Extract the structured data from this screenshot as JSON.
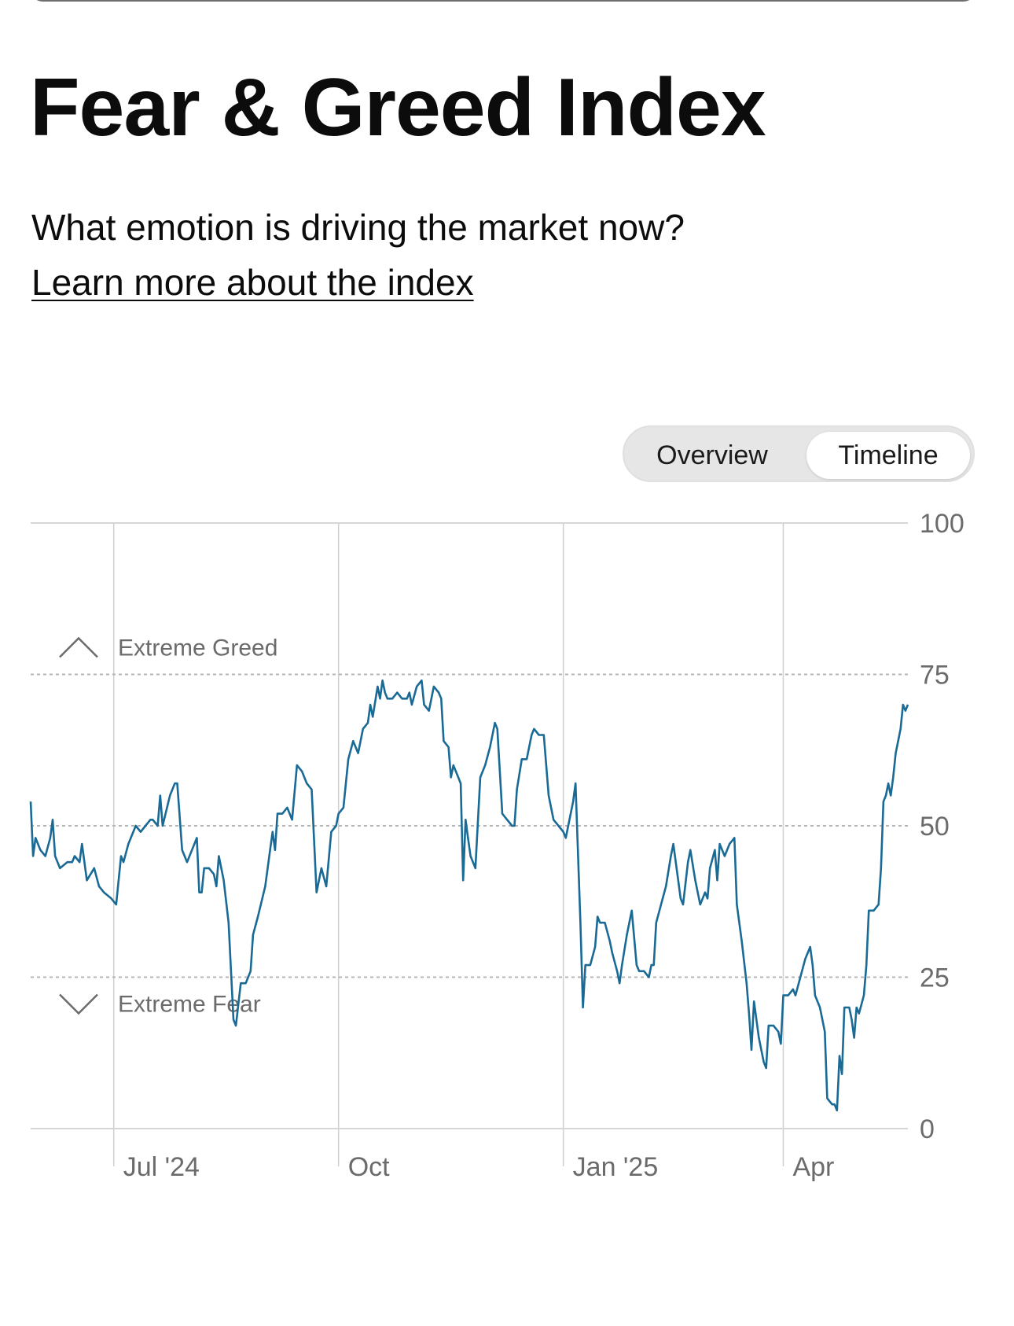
{
  "header": {
    "title": "Fear & Greed Index",
    "subtitle": "What emotion is driving the market now?",
    "learn_link": "Learn more about the index"
  },
  "toggle": {
    "options": [
      {
        "label": "Overview",
        "selected": false
      },
      {
        "label": "Timeline",
        "selected": true
      }
    ]
  },
  "colors": {
    "line": "#1a6a96",
    "grid": "#cfcfcf",
    "axis_text": "#6b6b6b"
  },
  "chart_data": {
    "type": "line",
    "title": "",
    "xlabel": "",
    "ylabel": "",
    "ylim": [
      0,
      100
    ],
    "yticks": [
      0,
      25,
      50,
      75,
      100
    ],
    "xticks": [
      {
        "date": "2024-07-01",
        "label": "Jul '24"
      },
      {
        "date": "2024-10-01",
        "label": "Oct"
      },
      {
        "date": "2025-01-01",
        "label": "Jan '25"
      },
      {
        "date": "2025-04-01",
        "label": "Apr"
      }
    ],
    "xlim": [
      "2024-05-28",
      "2025-05-22"
    ],
    "bands": [
      {
        "label": "Extreme Greed",
        "threshold": 75,
        "icon": "chevron-up-icon"
      },
      {
        "label": "Extreme Fear",
        "threshold": 25,
        "icon": "chevron-down-icon"
      }
    ],
    "series": [
      {
        "values": [
          [
            "2024-05-28",
            54
          ],
          [
            "2024-05-29",
            45
          ],
          [
            "2024-05-30",
            48
          ],
          [
            "2024-06-01",
            46
          ],
          [
            "2024-06-03",
            45
          ],
          [
            "2024-06-05",
            48
          ],
          [
            "2024-06-06",
            51
          ],
          [
            "2024-06-07",
            45
          ],
          [
            "2024-06-09",
            43
          ],
          [
            "2024-06-12",
            44
          ],
          [
            "2024-06-14",
            44
          ],
          [
            "2024-06-15",
            45
          ],
          [
            "2024-06-17",
            44
          ],
          [
            "2024-06-18",
            47
          ],
          [
            "2024-06-20",
            41
          ],
          [
            "2024-06-23",
            43
          ],
          [
            "2024-06-25",
            40
          ],
          [
            "2024-06-27",
            39
          ],
          [
            "2024-06-30",
            38
          ],
          [
            "2024-07-02",
            37
          ],
          [
            "2024-07-04",
            45
          ],
          [
            "2024-07-05",
            44
          ],
          [
            "2024-07-07",
            47
          ],
          [
            "2024-07-10",
            50
          ],
          [
            "2024-07-12",
            49
          ],
          [
            "2024-07-14",
            50
          ],
          [
            "2024-07-16",
            51
          ],
          [
            "2024-07-17",
            51
          ],
          [
            "2024-07-19",
            50
          ],
          [
            "2024-07-20",
            55
          ],
          [
            "2024-07-21",
            50
          ],
          [
            "2024-07-24",
            55
          ],
          [
            "2024-07-26",
            57
          ],
          [
            "2024-07-27",
            57
          ],
          [
            "2024-07-29",
            46
          ],
          [
            "2024-07-31",
            44
          ],
          [
            "2024-08-02",
            46
          ],
          [
            "2024-08-04",
            48
          ],
          [
            "2024-08-05",
            39
          ],
          [
            "2024-08-06",
            39
          ],
          [
            "2024-08-07",
            43
          ],
          [
            "2024-08-09",
            43
          ],
          [
            "2024-08-11",
            42
          ],
          [
            "2024-08-12",
            40
          ],
          [
            "2024-08-13",
            45
          ],
          [
            "2024-08-15",
            41
          ],
          [
            "2024-08-17",
            34
          ],
          [
            "2024-08-19",
            18
          ],
          [
            "2024-08-20",
            17
          ],
          [
            "2024-08-22",
            24
          ],
          [
            "2024-08-24",
            24
          ],
          [
            "2024-08-26",
            26
          ],
          [
            "2024-08-27",
            32
          ],
          [
            "2024-08-29",
            35
          ],
          [
            "2024-09-01",
            40
          ],
          [
            "2024-09-03",
            46
          ],
          [
            "2024-09-04",
            49
          ],
          [
            "2024-09-05",
            46
          ],
          [
            "2024-09-06",
            52
          ],
          [
            "2024-09-08",
            52
          ],
          [
            "2024-09-10",
            53
          ],
          [
            "2024-09-12",
            51
          ],
          [
            "2024-09-14",
            60
          ],
          [
            "2024-09-16",
            59
          ],
          [
            "2024-09-18",
            57
          ],
          [
            "2024-09-20",
            56
          ],
          [
            "2024-09-22",
            39
          ],
          [
            "2024-09-24",
            43
          ],
          [
            "2024-09-26",
            40
          ],
          [
            "2024-09-28",
            49
          ],
          [
            "2024-09-30",
            50
          ],
          [
            "2024-10-01",
            52
          ],
          [
            "2024-10-03",
            53
          ],
          [
            "2024-10-05",
            61
          ],
          [
            "2024-10-07",
            64
          ],
          [
            "2024-10-09",
            62
          ],
          [
            "2024-10-11",
            66
          ],
          [
            "2024-10-13",
            67
          ],
          [
            "2024-10-14",
            70
          ],
          [
            "2024-10-15",
            68
          ],
          [
            "2024-10-17",
            73
          ],
          [
            "2024-10-18",
            71
          ],
          [
            "2024-10-19",
            74
          ],
          [
            "2024-10-20",
            72
          ],
          [
            "2024-10-21",
            71
          ],
          [
            "2024-10-23",
            71
          ],
          [
            "2024-10-25",
            72
          ],
          [
            "2024-10-27",
            71
          ],
          [
            "2024-10-29",
            71
          ],
          [
            "2024-10-30",
            72
          ],
          [
            "2024-10-31",
            70
          ],
          [
            "2024-11-02",
            73
          ],
          [
            "2024-11-04",
            74
          ],
          [
            "2024-11-05",
            70
          ],
          [
            "2024-11-07",
            69
          ],
          [
            "2024-11-09",
            73
          ],
          [
            "2024-11-11",
            72
          ],
          [
            "2024-11-12",
            71
          ],
          [
            "2024-11-13",
            64
          ],
          [
            "2024-11-15",
            63
          ],
          [
            "2024-11-16",
            58
          ],
          [
            "2024-11-17",
            60
          ],
          [
            "2024-11-19",
            58
          ],
          [
            "2024-11-20",
            57
          ],
          [
            "2024-11-21",
            41
          ],
          [
            "2024-11-22",
            51
          ],
          [
            "2024-11-23",
            48
          ],
          [
            "2024-11-24",
            45
          ],
          [
            "2024-11-26",
            43
          ],
          [
            "2024-11-28",
            58
          ],
          [
            "2024-11-30",
            60
          ],
          [
            "2024-12-02",
            63
          ],
          [
            "2024-12-04",
            67
          ],
          [
            "2024-12-05",
            66
          ],
          [
            "2024-12-07",
            52
          ],
          [
            "2024-12-09",
            51
          ],
          [
            "2024-12-11",
            50
          ],
          [
            "2024-12-12",
            50
          ],
          [
            "2024-12-13",
            56
          ],
          [
            "2024-12-15",
            61
          ],
          [
            "2024-12-17",
            61
          ],
          [
            "2024-12-18",
            63
          ],
          [
            "2024-12-19",
            65
          ],
          [
            "2024-12-20",
            66
          ],
          [
            "2024-12-22",
            65
          ],
          [
            "2024-12-24",
            65
          ],
          [
            "2024-12-26",
            55
          ],
          [
            "2024-12-28",
            51
          ],
          [
            "2024-12-30",
            50
          ],
          [
            "2025-01-01",
            49
          ],
          [
            "2025-01-02",
            48
          ],
          [
            "2025-01-03",
            50
          ],
          [
            "2025-01-05",
            54
          ],
          [
            "2025-01-06",
            57
          ],
          [
            "2025-01-08",
            34
          ],
          [
            "2025-01-09",
            20
          ],
          [
            "2025-01-10",
            27
          ],
          [
            "2025-01-12",
            27
          ],
          [
            "2025-01-14",
            30
          ],
          [
            "2025-01-15",
            35
          ],
          [
            "2025-01-16",
            34
          ],
          [
            "2025-01-18",
            34
          ],
          [
            "2025-01-20",
            31
          ],
          [
            "2025-01-21",
            29
          ],
          [
            "2025-01-23",
            26
          ],
          [
            "2025-01-24",
            24
          ],
          [
            "2025-01-25",
            27
          ],
          [
            "2025-01-27",
            32
          ],
          [
            "2025-01-29",
            36
          ],
          [
            "2025-01-31",
            27
          ],
          [
            "2025-02-01",
            26
          ],
          [
            "2025-02-03",
            26
          ],
          [
            "2025-02-05",
            25
          ],
          [
            "2025-02-06",
            27
          ],
          [
            "2025-02-07",
            27
          ],
          [
            "2025-02-08",
            34
          ],
          [
            "2025-02-10",
            37
          ],
          [
            "2025-02-12",
            40
          ],
          [
            "2025-02-14",
            45
          ],
          [
            "2025-02-15",
            47
          ],
          [
            "2025-02-16",
            44
          ],
          [
            "2025-02-18",
            38
          ],
          [
            "2025-02-19",
            37
          ],
          [
            "2025-02-21",
            44
          ],
          [
            "2025-02-22",
            46
          ],
          [
            "2025-02-24",
            41
          ],
          [
            "2025-02-26",
            37
          ],
          [
            "2025-02-28",
            39
          ],
          [
            "2025-03-01",
            38
          ],
          [
            "2025-03-02",
            43
          ],
          [
            "2025-03-04",
            46
          ],
          [
            "2025-03-05",
            41
          ],
          [
            "2025-03-06",
            47
          ],
          [
            "2025-03-08",
            45
          ],
          [
            "2025-03-10",
            47
          ],
          [
            "2025-03-12",
            48
          ],
          [
            "2025-03-13",
            37
          ],
          [
            "2025-03-15",
            31
          ],
          [
            "2025-03-17",
            24
          ],
          [
            "2025-03-18",
            19
          ],
          [
            "2025-03-19",
            13
          ],
          [
            "2025-03-20",
            21
          ],
          [
            "2025-03-22",
            15
          ],
          [
            "2025-03-24",
            11
          ],
          [
            "2025-03-25",
            10
          ],
          [
            "2025-03-26",
            17
          ],
          [
            "2025-03-28",
            17
          ],
          [
            "2025-03-30",
            16
          ],
          [
            "2025-03-31",
            14
          ],
          [
            "2025-04-01",
            22
          ],
          [
            "2025-04-03",
            22
          ],
          [
            "2025-04-05",
            23
          ],
          [
            "2025-04-06",
            22
          ],
          [
            "2025-04-08",
            25
          ],
          [
            "2025-04-10",
            28
          ],
          [
            "2025-04-12",
            30
          ],
          [
            "2025-04-13",
            27
          ],
          [
            "2025-04-14",
            22
          ],
          [
            "2025-04-16",
            20
          ],
          [
            "2025-04-18",
            16
          ],
          [
            "2025-04-19",
            5
          ],
          [
            "2025-04-21",
            4
          ],
          [
            "2025-04-22",
            4
          ],
          [
            "2025-04-23",
            3
          ],
          [
            "2025-04-24",
            12
          ],
          [
            "2025-04-25",
            9
          ],
          [
            "2025-04-26",
            20
          ],
          [
            "2025-04-28",
            20
          ],
          [
            "2025-04-29",
            18
          ],
          [
            "2025-04-30",
            15
          ],
          [
            "2025-05-01",
            20
          ],
          [
            "2025-05-02",
            19
          ],
          [
            "2025-05-04",
            22
          ],
          [
            "2025-05-05",
            27
          ],
          [
            "2025-05-06",
            36
          ],
          [
            "2025-05-08",
            36
          ],
          [
            "2025-05-10",
            37
          ],
          [
            "2025-05-11",
            43
          ],
          [
            "2025-05-12",
            54
          ],
          [
            "2025-05-13",
            55
          ],
          [
            "2025-05-14",
            57
          ],
          [
            "2025-05-15",
            55
          ],
          [
            "2025-05-16",
            58
          ],
          [
            "2025-05-17",
            62
          ],
          [
            "2025-05-18",
            64
          ],
          [
            "2025-05-19",
            66
          ],
          [
            "2025-05-20",
            70
          ],
          [
            "2025-05-21",
            69
          ],
          [
            "2025-05-22",
            70
          ]
        ]
      }
    ]
  }
}
